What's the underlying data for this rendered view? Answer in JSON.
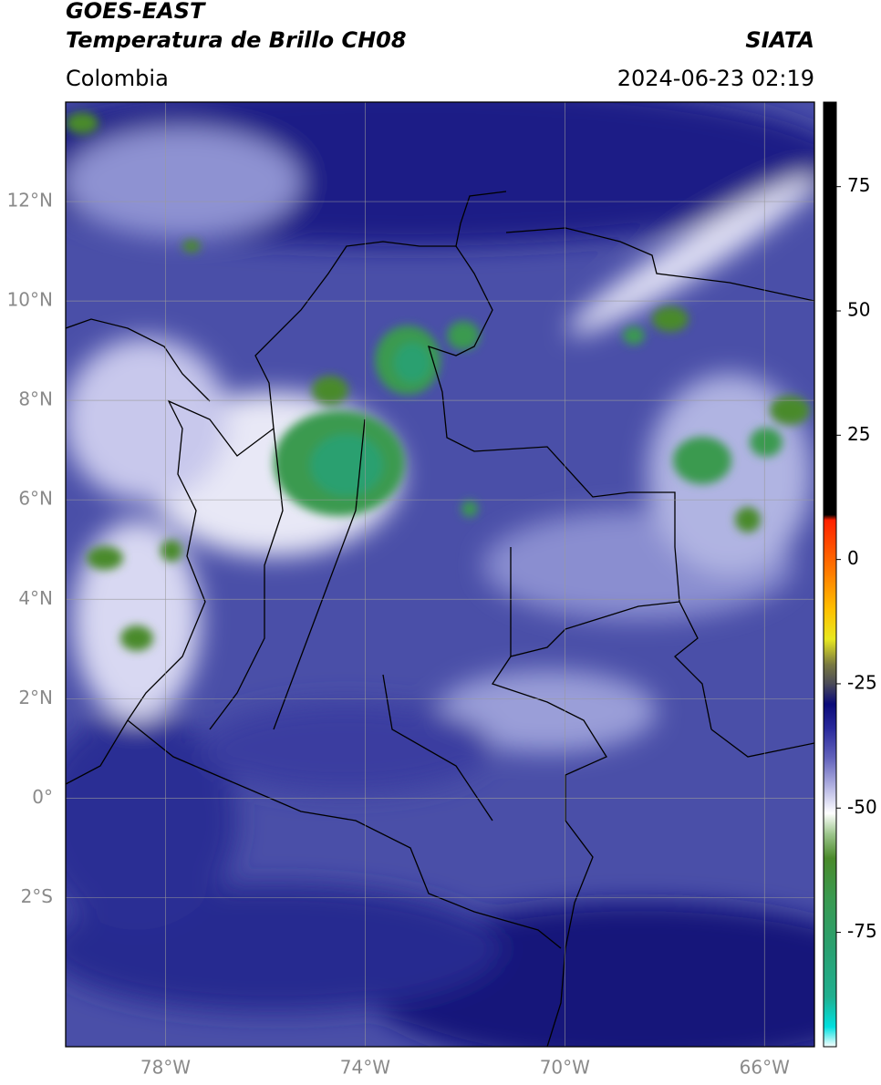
{
  "header": {
    "title": "GOES-EAST",
    "subtitle": "Temperatura de Brillo CH08",
    "source": "SIATA",
    "region": "Colombia",
    "datetime": "2024-06-23 02:19"
  },
  "map": {
    "xlim": [
      -80,
      -65
    ],
    "ylim": [
      -5,
      14
    ],
    "xticks": [
      {
        "value": -78,
        "label": "78°W"
      },
      {
        "value": -74,
        "label": "74°W"
      },
      {
        "value": -70,
        "label": "70°W"
      },
      {
        "value": -66,
        "label": "66°W"
      }
    ],
    "yticks": [
      {
        "value": 12,
        "label": "12°N"
      },
      {
        "value": 10,
        "label": "10°N"
      },
      {
        "value": 8,
        "label": "8°N"
      },
      {
        "value": 6,
        "label": "6°N"
      },
      {
        "value": 4,
        "label": "4°N"
      },
      {
        "value": 2,
        "label": "2°N"
      },
      {
        "value": 0,
        "label": "0°"
      },
      {
        "value": -2,
        "label": "2°S"
      }
    ],
    "grid": true
  },
  "colorbar": {
    "ylim": [
      -98,
      92
    ],
    "yticks": [
      75,
      50,
      25,
      0,
      -25,
      -50,
      -75
    ],
    "colormap": [
      {
        "value": -98,
        "color": "#ffffff"
      },
      {
        "value": -94,
        "color": "#00e0e0"
      },
      {
        "value": -88,
        "color": "#20b090"
      },
      {
        "value": -78,
        "color": "#2aa070"
      },
      {
        "value": -68,
        "color": "#3a9a50"
      },
      {
        "value": -60,
        "color": "#4a8a2a"
      },
      {
        "value": -55,
        "color": "#a0c890"
      },
      {
        "value": -51,
        "color": "#ffffff"
      },
      {
        "value": -46,
        "color": "#b8b8e4"
      },
      {
        "value": -40,
        "color": "#6464bc"
      },
      {
        "value": -34,
        "color": "#2a2a9c"
      },
      {
        "value": -29,
        "color": "#0a0a78"
      },
      {
        "value": -25,
        "color": "#4a4a58"
      },
      {
        "value": -21,
        "color": "#7a7a40"
      },
      {
        "value": -16,
        "color": "#e8e820"
      },
      {
        "value": -10,
        "color": "#ffc000"
      },
      {
        "value": -3,
        "color": "#ff8000"
      },
      {
        "value": 8,
        "color": "#ff2000"
      },
      {
        "value": 9,
        "color": "#000000"
      },
      {
        "value": 92,
        "color": "#000000"
      }
    ]
  }
}
